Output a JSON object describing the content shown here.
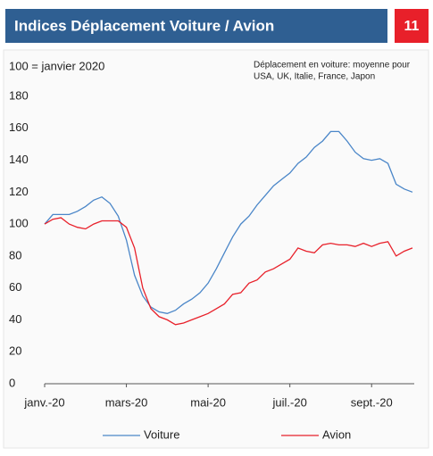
{
  "header": {
    "title": "Indices Déplacement Voiture / Avion",
    "page_number": "11"
  },
  "chart_data": {
    "type": "line",
    "subtitle": "100 = janvier 2020",
    "note": [
      "Déplacement en voiture: moyenne pour",
      "USA, UK, Italie, France, Japon"
    ],
    "categories": [
      "janv.-20",
      null,
      null,
      null,
      null,
      null,
      null,
      null,
      null,
      null,
      "mars-20",
      null,
      null,
      null,
      null,
      null,
      null,
      null,
      null,
      null,
      "mai-20",
      null,
      null,
      null,
      null,
      null,
      null,
      null,
      null,
      null,
      "juil.-20",
      null,
      null,
      null,
      null,
      null,
      null,
      null,
      null,
      null,
      "sept.-20",
      null,
      null,
      null,
      null,
      null
    ],
    "series": [
      {
        "name": "Voiture",
        "color": "#4a86c8",
        "values": [
          100,
          106,
          106,
          106,
          108,
          111,
          115,
          117,
          113,
          105,
          90,
          68,
          55,
          48,
          45,
          44,
          46,
          50,
          53,
          57,
          63,
          72,
          82,
          92,
          100,
          105,
          112,
          118,
          124,
          128,
          132,
          138,
          142,
          148,
          152,
          158,
          158,
          152,
          145,
          141,
          140,
          141,
          138,
          125,
          122,
          120
        ]
      },
      {
        "name": "Avion",
        "color": "#e8202a",
        "values": [
          100,
          103,
          104,
          100,
          98,
          97,
          100,
          102,
          102,
          102,
          98,
          85,
          60,
          47,
          42,
          40,
          37,
          38,
          40,
          42,
          44,
          47,
          50,
          56,
          57,
          63,
          65,
          70,
          72,
          75,
          78,
          85,
          83,
          82,
          87,
          88,
          87,
          87,
          86,
          88,
          86,
          88,
          89,
          80,
          83,
          85
        ]
      }
    ],
    "ylim": [
      0,
      180
    ],
    "yticks": [
      0,
      20,
      40,
      60,
      80,
      100,
      120,
      140,
      160,
      180
    ]
  }
}
